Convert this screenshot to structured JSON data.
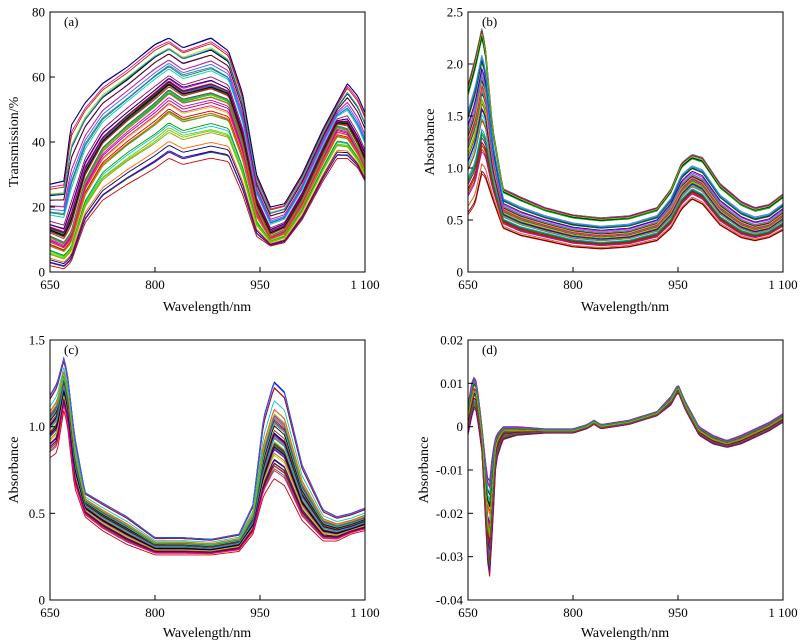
{
  "figure": {
    "background": "#ffffff",
    "axis_color": "#000000",
    "palette": [
      "#0000cc",
      "#cc0000",
      "#009900",
      "#00cccc",
      "#cc00cc",
      "#cccc00",
      "#000066",
      "#006600",
      "#660000",
      "#ff6600",
      "#3366ff",
      "#00aa66",
      "#aa0066",
      "#6600aa",
      "#999900",
      "#000000",
      "#ff0099",
      "#0099ff",
      "#66cc00",
      "#993300"
    ]
  },
  "chart_data": [
    {
      "id": "a",
      "type": "line",
      "panel_label": "(a)",
      "xlabel": "Wavelength/nm",
      "ylabel": "Transmission/%",
      "xlim": [
        650,
        1100
      ],
      "ylim": [
        0,
        80
      ],
      "x_ticks": [
        {
          "value": 650,
          "label": "650"
        },
        {
          "value": 800,
          "label": "800"
        },
        {
          "value": 950,
          "label": "950"
        },
        {
          "value": 1100,
          "label": "1 100"
        }
      ],
      "y_ticks": [
        {
          "value": 0,
          "label": "0"
        },
        {
          "value": 20,
          "label": "20"
        },
        {
          "value": 40,
          "label": "40"
        },
        {
          "value": 60,
          "label": "60"
        },
        {
          "value": 80,
          "label": "80"
        }
      ],
      "series_count": 60,
      "spread": 0.32,
      "x": [
        650,
        670,
        680,
        700,
        725,
        760,
        800,
        820,
        840,
        880,
        905,
        925,
        945,
        965,
        985,
        1010,
        1040,
        1060,
        1075,
        1090,
        1100
      ],
      "median": [
        11,
        9,
        12,
        28,
        38,
        45,
        52,
        56,
        53,
        55,
        53,
        40,
        20,
        11,
        13,
        22,
        36,
        45,
        44,
        38,
        33
      ],
      "upper": [
        27,
        28,
        45,
        52,
        58,
        63,
        70,
        72,
        69,
        72,
        68,
        55,
        30,
        20,
        21,
        30,
        44,
        52,
        58,
        54,
        49
      ],
      "lower": [
        2,
        1,
        3,
        15,
        22,
        27,
        32,
        35,
        33,
        35,
        34,
        24,
        11,
        8,
        9,
        16,
        28,
        35,
        35,
        32,
        28
      ]
    },
    {
      "id": "b",
      "type": "line",
      "panel_label": "(b)",
      "xlabel": "Wavelength/nm",
      "ylabel": "Absorbance",
      "xlim": [
        650,
        1100
      ],
      "ylim": [
        0,
        2.5
      ],
      "x_ticks": [
        {
          "value": 650,
          "label": "650"
        },
        {
          "value": 800,
          "label": "800"
        },
        {
          "value": 950,
          "label": "950"
        },
        {
          "value": 1100,
          "label": "1 100"
        }
      ],
      "y_ticks": [
        {
          "value": 0,
          "label": "0"
        },
        {
          "value": 0.5,
          "label": "0.5"
        },
        {
          "value": 1.0,
          "label": "1.0"
        },
        {
          "value": 1.5,
          "label": "1.5"
        },
        {
          "value": 2.0,
          "label": "2.0"
        },
        {
          "value": 2.5,
          "label": "2.5"
        }
      ],
      "series_count": 60,
      "spread": 0.35,
      "x": [
        650,
        660,
        670,
        675,
        685,
        700,
        725,
        760,
        800,
        840,
        880,
        920,
        940,
        955,
        970,
        985,
        1010,
        1040,
        1060,
        1080,
        1100
      ],
      "median": [
        1.25,
        1.45,
        1.8,
        1.7,
        1.1,
        0.6,
        0.52,
        0.45,
        0.38,
        0.35,
        0.37,
        0.45,
        0.6,
        0.8,
        0.9,
        0.85,
        0.62,
        0.47,
        0.42,
        0.45,
        0.55
      ],
      "upper": [
        1.8,
        2.05,
        2.35,
        2.15,
        1.4,
        0.8,
        0.72,
        0.62,
        0.55,
        0.52,
        0.54,
        0.62,
        0.8,
        1.05,
        1.13,
        1.1,
        0.85,
        0.68,
        0.62,
        0.65,
        0.75
      ],
      "lower": [
        0.55,
        0.65,
        0.95,
        0.9,
        0.7,
        0.42,
        0.35,
        0.3,
        0.24,
        0.22,
        0.24,
        0.3,
        0.42,
        0.6,
        0.7,
        0.65,
        0.45,
        0.33,
        0.3,
        0.33,
        0.4
      ]
    },
    {
      "id": "c",
      "type": "line",
      "panel_label": "(c)",
      "xlabel": "Wavelength/nm",
      "ylabel": "Absorbance",
      "xlim": [
        650,
        1100
      ],
      "ylim": [
        0,
        1.5
      ],
      "x_ticks": [
        {
          "value": 650,
          "label": "650"
        },
        {
          "value": 800,
          "label": "800"
        },
        {
          "value": 950,
          "label": "950"
        },
        {
          "value": 1100,
          "label": "1 100"
        }
      ],
      "y_ticks": [
        {
          "value": 0,
          "label": "0"
        },
        {
          "value": 0.5,
          "label": "0.5"
        },
        {
          "value": 1.0,
          "label": "1.0"
        },
        {
          "value": 1.5,
          "label": "1.5"
        }
      ],
      "series_count": 60,
      "spread": 0.3,
      "x": [
        650,
        660,
        670,
        675,
        685,
        700,
        725,
        760,
        800,
        840,
        880,
        920,
        940,
        955,
        970,
        985,
        1010,
        1040,
        1060,
        1080,
        1100
      ],
      "median": [
        1.0,
        1.05,
        1.25,
        1.15,
        0.8,
        0.55,
        0.48,
        0.4,
        0.31,
        0.31,
        0.3,
        0.33,
        0.45,
        0.75,
        0.95,
        0.9,
        0.6,
        0.42,
        0.4,
        0.42,
        0.45
      ],
      "upper": [
        1.18,
        1.25,
        1.4,
        1.3,
        0.95,
        0.62,
        0.56,
        0.48,
        0.36,
        0.36,
        0.35,
        0.38,
        0.55,
        1.05,
        1.26,
        1.2,
        0.78,
        0.52,
        0.48,
        0.5,
        0.53
      ],
      "lower": [
        0.82,
        0.85,
        1.1,
        1.0,
        0.65,
        0.48,
        0.4,
        0.32,
        0.26,
        0.26,
        0.26,
        0.28,
        0.38,
        0.6,
        0.7,
        0.66,
        0.46,
        0.34,
        0.34,
        0.38,
        0.4
      ]
    },
    {
      "id": "d",
      "type": "line",
      "panel_label": "(d)",
      "xlabel": "Wavelength/nm",
      "ylabel": "Absorbance",
      "xlim": [
        650,
        1100
      ],
      "ylim": [
        -0.04,
        0.02
      ],
      "x_ticks": [
        {
          "value": 650,
          "label": "650"
        },
        {
          "value": 800,
          "label": "800"
        },
        {
          "value": 950,
          "label": "950"
        },
        {
          "value": 1100,
          "label": "1 100"
        }
      ],
      "y_ticks": [
        {
          "value": -0.04,
          "label": "-0.04"
        },
        {
          "value": -0.03,
          "label": "-0.03"
        },
        {
          "value": -0.02,
          "label": "-0.02"
        },
        {
          "value": -0.01,
          "label": "-0.01"
        },
        {
          "value": 0,
          "label": "0"
        },
        {
          "value": 0.01,
          "label": "0.01"
        },
        {
          "value": 0.02,
          "label": "0.02"
        }
      ],
      "series_count": 60,
      "spread": 0.3,
      "x": [
        650,
        655,
        660,
        665,
        670,
        675,
        680,
        685,
        690,
        700,
        720,
        760,
        800,
        820,
        830,
        840,
        880,
        920,
        940,
        950,
        960,
        980,
        1000,
        1020,
        1040,
        1080,
        1100
      ],
      "median": [
        0.002,
        0.006,
        0.009,
        0.004,
        -0.002,
        -0.015,
        -0.028,
        -0.014,
        -0.004,
        -0.001,
        -0.001,
        -0.001,
        -0.001,
        0.0,
        0.001,
        0.0,
        0.001,
        0.003,
        0.006,
        0.009,
        0.005,
        -0.001,
        -0.003,
        -0.004,
        -0.003,
        0.0,
        0.002
      ],
      "upper": [
        0.005,
        0.01,
        0.012,
        0.007,
        0.0,
        -0.008,
        -0.014,
        -0.006,
        -0.002,
        0.0,
        0.0,
        -0.0005,
        -0.0005,
        0.0005,
        0.0015,
        0.0005,
        0.0015,
        0.0035,
        0.007,
        0.0098,
        0.006,
        0.0,
        -0.002,
        -0.0032,
        -0.002,
        0.001,
        0.003
      ],
      "lower": [
        -0.002,
        0.002,
        0.005,
        0.0,
        -0.006,
        -0.022,
        -0.037,
        -0.024,
        -0.008,
        -0.003,
        -0.002,
        -0.0015,
        -0.0015,
        -0.0005,
        0.0005,
        -0.0005,
        0.0005,
        0.0025,
        0.005,
        0.008,
        0.004,
        -0.002,
        -0.004,
        -0.0048,
        -0.004,
        -0.001,
        0.001
      ]
    }
  ]
}
